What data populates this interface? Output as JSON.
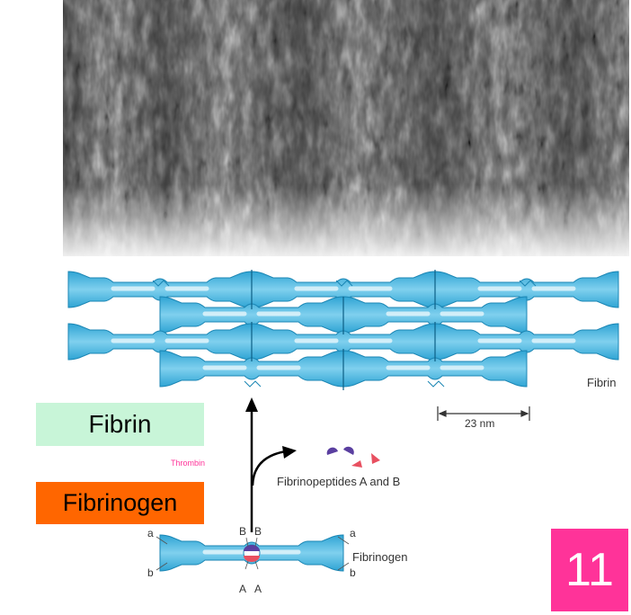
{
  "labels": {
    "fibrin_box": "Fibrin",
    "fibrinogen_box": "Fibrinogen",
    "thrombin": "Thrombin",
    "fibrin_diagram": "Fibrin",
    "scale": "23 nm",
    "fibrinopeptides": "Fibrinopeptides A and B",
    "fibrinogen_diagram": "Fibrinogen",
    "left_a": "a",
    "left_b": "b",
    "right_a": "a",
    "right_b": "b",
    "top_B1": "B",
    "top_B2": "B",
    "bottom_A1": "A",
    "bottom_A2": "A"
  },
  "slide_number": "11",
  "colors": {
    "fibrin_box": "#c8f5d8",
    "fibrinogen_box": "#ff6600",
    "slide_badge": "#ff3399",
    "molecule": "#3fb0dc",
    "molecule_light": "#e8f7fc",
    "peptide_purple": "#5a3fa0",
    "peptide_red": "#e85060",
    "thrombin_text": "#ff3399"
  }
}
